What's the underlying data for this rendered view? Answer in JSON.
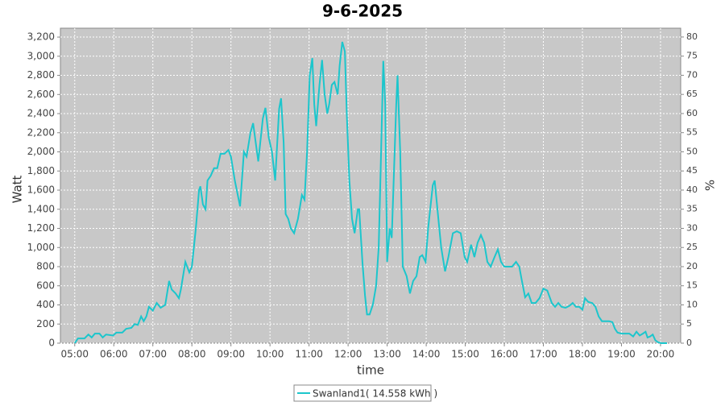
{
  "chart_data": {
    "type": "line",
    "title": "9-6-2025",
    "xlabel": "time",
    "ylabel": "Watt",
    "y2label": "%",
    "xlim": [
      "04:38",
      "20:31"
    ],
    "xticks": [
      "05:00",
      "06:00",
      "07:00",
      "08:00",
      "09:00",
      "10:00",
      "11:00",
      "12:00",
      "13:00",
      "14:00",
      "15:00",
      "16:00",
      "17:00",
      "18:00",
      "19:00",
      "20:00"
    ],
    "ylim": [
      0,
      3293
    ],
    "yticks": [
      0,
      200,
      400,
      600,
      800,
      {
        "value": 1000,
        "label": "1,000"
      },
      {
        "value": 1200,
        "label": "1,200"
      },
      {
        "value": 1400,
        "label": "1,400"
      },
      {
        "value": 1600,
        "label": "1,600"
      },
      {
        "value": 1800,
        "label": "1,800"
      },
      {
        "value": 2000,
        "label": "2,000"
      },
      {
        "value": 2200,
        "label": "2,200"
      },
      {
        "value": 2400,
        "label": "2,400"
      },
      {
        "value": 2600,
        "label": "2,600"
      },
      {
        "value": 2800,
        "label": "2,800"
      },
      {
        "value": 3000,
        "label": "3,000"
      },
      {
        "value": 3200,
        "label": "3,200"
      }
    ],
    "y2lim": [
      0,
      82.3
    ],
    "y2ticks": [
      0,
      5,
      10,
      15,
      20,
      25,
      30,
      35,
      40,
      45,
      50,
      55,
      60,
      65,
      70,
      75,
      80
    ],
    "grid": true,
    "x": [
      "05:00",
      "05:05",
      "05:15",
      "05:21",
      "05:26",
      "05:31",
      "05:38",
      "05:43",
      "05:48",
      "05:59",
      "06:04",
      "06:13",
      "06:19",
      "06:27",
      "06:32",
      "06:37",
      "06:42",
      "06:46",
      "06:50",
      "06:54",
      "07:00",
      "07:06",
      "07:12",
      "07:19",
      "07:25",
      "07:29",
      "07:35",
      "07:40",
      "07:43",
      "07:50",
      "07:56",
      "08:00",
      "08:06",
      "08:11",
      "08:13",
      "08:17",
      "08:21",
      "08:24",
      "08:29",
      "08:34",
      "08:39",
      "08:44",
      "08:50",
      "08:56",
      "09:00",
      "09:06",
      "09:14",
      "09:20",
      "09:24",
      "09:30",
      "09:34",
      "09:39",
      "09:42",
      "09:49",
      "09:53",
      "09:58",
      "10:03",
      "10:08",
      "10:14",
      "10:17",
      "10:21",
      "10:24",
      "10:28",
      "10:32",
      "10:37",
      "10:43",
      "10:49",
      "10:53",
      "10:57",
      "11:01",
      "11:05",
      "11:08",
      "11:11",
      "11:16",
      "11:20",
      "11:24",
      "11:28",
      "11:31",
      "11:35",
      "11:39",
      "11:44",
      "11:47",
      "11:51",
      "11:55",
      "11:58",
      "12:02",
      "12:06",
      "12:10",
      "12:15",
      "12:17",
      "12:22",
      "12:26",
      "12:29",
      "12:33",
      "12:38",
      "12:43",
      "12:47",
      "12:50",
      "12:54",
      "12:57",
      "13:00",
      "13:04",
      "13:07",
      "13:10",
      "13:14",
      "13:16",
      "13:20",
      "13:24",
      "13:30",
      "13:35",
      "13:40",
      "13:45",
      "13:50",
      "13:54",
      "13:59",
      "14:03",
      "14:10",
      "14:13",
      "14:18",
      "14:23",
      "14:29",
      "14:34",
      "14:41",
      "14:47",
      "14:53",
      "14:59",
      "15:03",
      "15:09",
      "15:14",
      "15:19",
      "15:24",
      "15:29",
      "15:34",
      "15:39",
      "15:45",
      "15:50",
      "15:55",
      "16:00",
      "16:06",
      "16:12",
      "16:18",
      "16:23",
      "16:27",
      "16:32",
      "16:37",
      "16:42",
      "16:48",
      "16:54",
      "17:00",
      "17:06",
      "17:13",
      "17:18",
      "17:23",
      "17:28",
      "17:34",
      "17:40",
      "17:45",
      "17:50",
      "17:55",
      "18:00",
      "18:04",
      "18:09",
      "18:15",
      "18:20",
      "18:25",
      "18:30",
      "18:36",
      "18:41",
      "18:46",
      "18:50",
      "18:54",
      "19:00",
      "19:06",
      "19:12",
      "19:18",
      "19:23",
      "19:28",
      "19:33",
      "19:37",
      "19:40",
      "19:44",
      "19:48",
      "19:52",
      "19:56",
      "20:01",
      "20:10"
    ],
    "series": [
      {
        "name": "Swanland1( 14.558 kWh )",
        "color": "#1cc6cc",
        "values": [
          0,
          50,
          50,
          90,
          60,
          100,
          100,
          60,
          90,
          80,
          110,
          110,
          150,
          160,
          200,
          190,
          280,
          230,
          280,
          380,
          340,
          420,
          370,
          400,
          650,
          560,
          520,
          470,
          560,
          850,
          740,
          800,
          1200,
          1600,
          1640,
          1450,
          1400,
          1700,
          1750,
          1830,
          1830,
          1980,
          1980,
          2020,
          1950,
          1700,
          1430,
          2000,
          1950,
          2200,
          2300,
          2050,
          1900,
          2350,
          2460,
          2150,
          2000,
          1700,
          2450,
          2560,
          2100,
          1350,
          1300,
          1200,
          1150,
          1300,
          1550,
          1500,
          2000,
          2800,
          2980,
          2500,
          2270,
          2700,
          2960,
          2600,
          2400,
          2500,
          2700,
          2730,
          2600,
          2900,
          3150,
          3050,
          2400,
          1700,
          1300,
          1150,
          1400,
          1400,
          850,
          500,
          300,
          300,
          400,
          600,
          1000,
          1800,
          2950,
          2500,
          850,
          1200,
          1100,
          1700,
          2500,
          2800,
          2000,
          800,
          700,
          520,
          650,
          700,
          900,
          920,
          850,
          1200,
          1650,
          1700,
          1350,
          1000,
          750,
          900,
          1150,
          1170,
          1150,
          900,
          850,
          1030,
          900,
          1050,
          1130,
          1050,
          850,
          800,
          900,
          980,
          850,
          800,
          800,
          800,
          850,
          800,
          650,
          480,
          520,
          420,
          420,
          470,
          570,
          550,
          420,
          380,
          420,
          380,
          370,
          390,
          420,
          380,
          380,
          350,
          470,
          430,
          420,
          380,
          280,
          230,
          230,
          230,
          220,
          150,
          110,
          100,
          100,
          100,
          70,
          120,
          80,
          100,
          120,
          60,
          70,
          90,
          30,
          10,
          0,
          0
        ]
      }
    ]
  }
}
